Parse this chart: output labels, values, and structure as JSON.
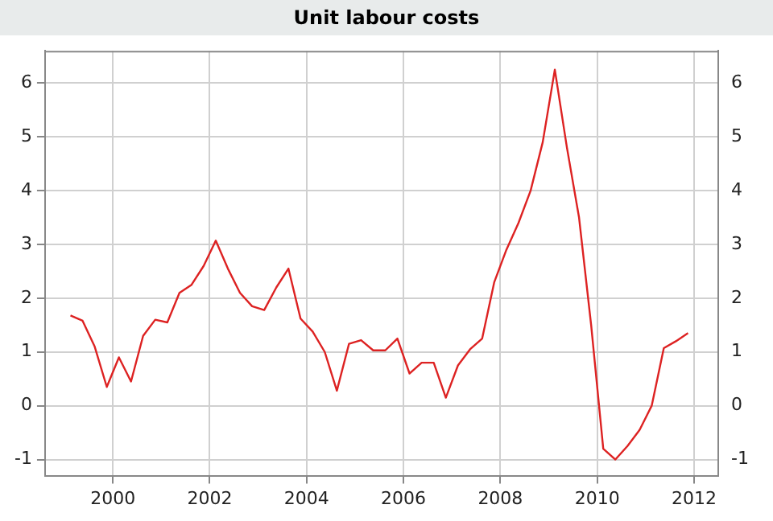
{
  "chart_data": {
    "type": "line",
    "title": "Unit labour costs",
    "x": [
      1999.125,
      1999.375,
      1999.625,
      1999.875,
      2000.125,
      2000.375,
      2000.625,
      2000.875,
      2001.125,
      2001.375,
      2001.625,
      2001.875,
      2002.125,
      2002.375,
      2002.625,
      2002.875,
      2003.125,
      2003.375,
      2003.625,
      2003.875,
      2004.125,
      2004.375,
      2004.625,
      2004.875,
      2005.125,
      2005.375,
      2005.625,
      2005.875,
      2006.125,
      2006.375,
      2006.625,
      2006.875,
      2007.125,
      2007.375,
      2007.625,
      2007.875,
      2008.125,
      2008.375,
      2008.625,
      2008.875,
      2009.125,
      2009.375,
      2009.625,
      2009.875,
      2010.125,
      2010.375,
      2010.625,
      2010.875,
      2011.125,
      2011.375,
      2011.625,
      2011.875
    ],
    "series": [
      {
        "color": "#dd2222",
        "values": [
          1.68,
          1.58,
          1.1,
          0.35,
          0.9,
          0.45,
          1.3,
          1.6,
          1.55,
          2.1,
          2.25,
          2.6,
          3.07,
          2.55,
          2.1,
          1.85,
          1.78,
          2.2,
          2.55,
          1.62,
          1.38,
          1.0,
          0.28,
          1.15,
          1.22,
          1.03,
          1.03,
          1.25,
          0.6,
          0.8,
          0.8,
          0.15,
          0.75,
          1.05,
          1.25,
          2.3,
          2.9,
          3.4,
          4.0,
          4.9,
          6.25,
          4.8,
          3.5,
          1.5,
          -0.8,
          -1.0,
          -0.75,
          -0.45,
          0.0,
          1.07,
          1.2,
          1.35
        ]
      }
    ],
    "xlim": [
      1998.6,
      2012.5
    ],
    "xticks": [
      2000,
      2002,
      2004,
      2006,
      2008,
      2010,
      2012
    ],
    "ylim": [
      -1.3,
      6.6
    ],
    "yticks": [
      -1,
      0,
      1,
      2,
      3,
      4,
      5,
      6
    ],
    "y2lim": [
      -1.3,
      6.6
    ],
    "y2ticks": [
      -1,
      0,
      1,
      2,
      3,
      4,
      5,
      6
    ],
    "grid": true,
    "legend": false,
    "marker": "none",
    "line_style": "solid"
  }
}
